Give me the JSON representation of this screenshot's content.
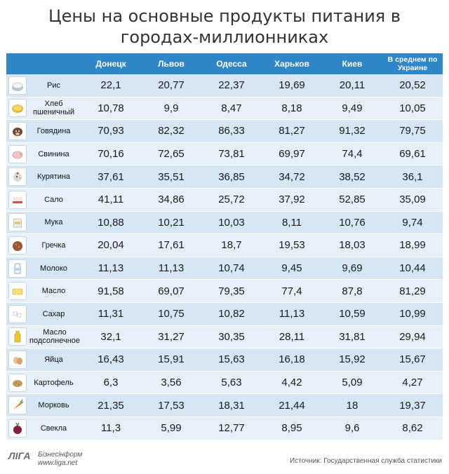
{
  "title_line1": "Цены на основные продукты питания в",
  "title_line2": "городах-миллионниках",
  "source": "Источник: Государственная служба статистики",
  "logo": {
    "main": "ЛIГА",
    "sub1": "Бізнесінформ",
    "sub2": "www.liga.net"
  },
  "colors": {
    "header": "#2f86c9",
    "row_odd": "#d6e6f4",
    "row_even": "#e7f0f8"
  },
  "chart_data": {
    "type": "table",
    "title": "Цены на основные продукты питания в городах-миллионниках",
    "columns": [
      "Донецк",
      "Львов",
      "Одесса",
      "Харьков",
      "Киев",
      "В среднем по Украине"
    ],
    "rows": [
      {
        "product": "Рис",
        "icon": "rice-icon",
        "values": [
          "22,1",
          "20,77",
          "22,37",
          "19,69",
          "20,11",
          "20,52"
        ]
      },
      {
        "product": "Хлеб пшеничный",
        "icon": "bread-icon",
        "values": [
          "10,78",
          "9,9",
          "8,47",
          "8,18",
          "9,49",
          "10,05"
        ]
      },
      {
        "product": "Говядина",
        "icon": "cow-icon",
        "values": [
          "70,93",
          "82,32",
          "86,33",
          "81,27",
          "91,32",
          "79,75"
        ]
      },
      {
        "product": "Свинина",
        "icon": "pig-icon",
        "values": [
          "70,16",
          "72,65",
          "73,81",
          "69,97",
          "74,4",
          "69,61"
        ]
      },
      {
        "product": "Курятина",
        "icon": "chicken-icon",
        "values": [
          "37,61",
          "35,51",
          "36,85",
          "34,72",
          "38,52",
          "36,1"
        ]
      },
      {
        "product": "Сало",
        "icon": "lard-icon",
        "values": [
          "41,11",
          "34,86",
          "25,72",
          "37,92",
          "52,85",
          "35,09"
        ]
      },
      {
        "product": "Мука",
        "icon": "flour-icon",
        "values": [
          "10,88",
          "10,21",
          "10,03",
          "8,11",
          "10,76",
          "9,74"
        ]
      },
      {
        "product": "Гречка",
        "icon": "buckwheat-icon",
        "values": [
          "20,04",
          "17,61",
          "18,7",
          "19,53",
          "18,03",
          "18,99"
        ]
      },
      {
        "product": "Молоко",
        "icon": "milk-icon",
        "values": [
          "11,13",
          "11,13",
          "10,74",
          "9,45",
          "9,69",
          "10,44"
        ]
      },
      {
        "product": "Масло",
        "icon": "butter-icon",
        "values": [
          "91,58",
          "69,07",
          "79,35",
          "77,4",
          "87,8",
          "81,29"
        ]
      },
      {
        "product": "Сахар",
        "icon": "sugar-icon",
        "values": [
          "11,31",
          "10,75",
          "10,82",
          "11,13",
          "10,59",
          "10,99"
        ]
      },
      {
        "product": "Масло подсолнечное",
        "icon": "sunflower-oil-icon",
        "values": [
          "32,1",
          "31,27",
          "30,35",
          "28,11",
          "31,81",
          "29,94"
        ]
      },
      {
        "product": "Яйца",
        "icon": "eggs-icon",
        "values": [
          "16,43",
          "15,91",
          "15,63",
          "16,18",
          "15,92",
          "15,67"
        ]
      },
      {
        "product": "Картофель",
        "icon": "potato-icon",
        "values": [
          "6,3",
          "3,56",
          "5,63",
          "4,42",
          "5,09",
          "4,27"
        ]
      },
      {
        "product": "Морковь",
        "icon": "carrot-icon",
        "values": [
          "21,35",
          "17,53",
          "18,31",
          "21,44",
          "18",
          "19,37"
        ]
      },
      {
        "product": "Свекла",
        "icon": "beet-icon",
        "values": [
          "11,3",
          "5,99",
          "12,77",
          "8,95",
          "9,6",
          "8,62"
        ]
      }
    ]
  }
}
